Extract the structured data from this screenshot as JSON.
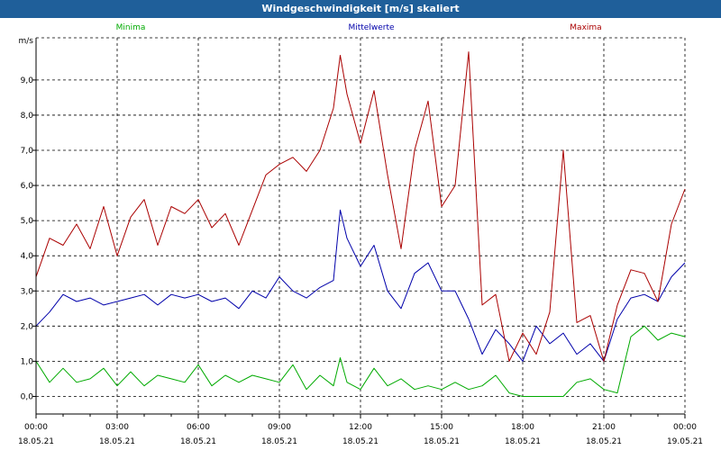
{
  "window": {
    "title": "Windgeschwindigkeit [m/s] skaliert"
  },
  "colors": {
    "minima": "#00aa00",
    "mittelwerte": "#0000aa",
    "maxima": "#aa0000",
    "titlebar": "#1f5f9a"
  },
  "chart_data": {
    "type": "line",
    "ylabel": "m/s",
    "ylim": [
      -0.5,
      10.2
    ],
    "xlim_hours": [
      0,
      24
    ],
    "yticks": [
      "0,0",
      "1,0",
      "2,0",
      "3,0",
      "4,0",
      "5,0",
      "6,0",
      "7,0",
      "8,0",
      "9,0"
    ],
    "ytick_values": [
      0,
      1,
      2,
      3,
      4,
      5,
      6,
      7,
      8,
      9
    ],
    "xticks": [
      {
        "time": "00:00",
        "date": "18.05.21"
      },
      {
        "time": "03:00",
        "date": "18.05.21"
      },
      {
        "time": "06:00",
        "date": "18.05.21"
      },
      {
        "time": "09:00",
        "date": "18.05.21"
      },
      {
        "time": "12:00",
        "date": "18.05.21"
      },
      {
        "time": "15:00",
        "date": "18.05.21"
      },
      {
        "time": "18:00",
        "date": "18.05.21"
      },
      {
        "time": "21:00",
        "date": "18.05.21"
      },
      {
        "time": "00:00",
        "date": "19.05.21"
      }
    ],
    "grid": true,
    "legend_placement": "top",
    "series": [
      {
        "name": "Minima",
        "color": "#00aa00",
        "x": [
          0,
          0.5,
          1,
          1.5,
          2,
          2.5,
          3,
          3.5,
          4,
          4.5,
          5,
          5.5,
          6,
          6.5,
          7,
          7.5,
          8,
          8.5,
          9,
          9.5,
          10,
          10.5,
          11,
          11.25,
          11.5,
          12,
          12.5,
          13,
          13.5,
          14,
          14.5,
          15,
          15.5,
          16,
          16.5,
          17,
          17.5,
          18,
          18.5,
          19,
          19.5,
          20,
          20.5,
          21,
          21.5,
          22,
          22.5,
          23,
          23.5,
          24
        ],
        "values": [
          1.0,
          0.4,
          0.8,
          0.4,
          0.5,
          0.8,
          0.3,
          0.7,
          0.3,
          0.6,
          0.5,
          0.4,
          0.9,
          0.3,
          0.6,
          0.4,
          0.6,
          0.5,
          0.4,
          0.9,
          0.2,
          0.6,
          0.3,
          1.1,
          0.4,
          0.2,
          0.8,
          0.3,
          0.5,
          0.2,
          0.3,
          0.2,
          0.4,
          0.2,
          0.3,
          0.6,
          0.1,
          0.0,
          0.0,
          0.0,
          0.0,
          0.4,
          0.5,
          0.2,
          0.1,
          1.7,
          2.0,
          1.6,
          1.8,
          1.7
        ]
      },
      {
        "name": "Mittelwerte",
        "color": "#0000aa",
        "x": [
          0,
          0.5,
          1,
          1.5,
          2,
          2.5,
          3,
          3.5,
          4,
          4.5,
          5,
          5.5,
          6,
          6.5,
          7,
          7.5,
          8,
          8.5,
          9,
          9.5,
          10,
          10.5,
          11,
          11.25,
          11.5,
          12,
          12.5,
          13,
          13.5,
          14,
          14.5,
          15,
          15.5,
          16,
          16.5,
          17,
          17.5,
          18,
          18.5,
          19,
          19.5,
          20,
          20.5,
          21,
          21.5,
          22,
          22.5,
          23,
          23.5,
          24
        ],
        "values": [
          2.0,
          2.4,
          2.9,
          2.7,
          2.8,
          2.6,
          2.7,
          2.8,
          2.9,
          2.6,
          2.9,
          2.8,
          2.9,
          2.7,
          2.8,
          2.5,
          3.0,
          2.8,
          3.4,
          3.0,
          2.8,
          3.1,
          3.3,
          5.3,
          4.5,
          3.7,
          4.3,
          3.0,
          2.5,
          3.5,
          3.8,
          3.0,
          3.0,
          2.2,
          1.2,
          1.9,
          1.5,
          1.0,
          2.0,
          1.5,
          1.8,
          1.2,
          1.5,
          1.0,
          2.2,
          2.8,
          2.9,
          2.7,
          3.4,
          3.8
        ]
      },
      {
        "name": "Maxima",
        "color": "#aa0000",
        "x": [
          0,
          0.5,
          1,
          1.5,
          2,
          2.5,
          3,
          3.5,
          4,
          4.5,
          5,
          5.5,
          6,
          6.5,
          7,
          7.5,
          8,
          8.5,
          9,
          9.5,
          10,
          10.5,
          11,
          11.25,
          11.5,
          12,
          12.5,
          13,
          13.5,
          14,
          14.5,
          15,
          15.5,
          16,
          16.5,
          17,
          17.5,
          18,
          18.5,
          19,
          19.5,
          20,
          20.5,
          21,
          21.5,
          22,
          22.5,
          23,
          23.5,
          24
        ],
        "values": [
          3.4,
          4.5,
          4.3,
          4.9,
          4.2,
          5.4,
          4.0,
          5.1,
          5.6,
          4.3,
          5.4,
          5.2,
          5.6,
          4.8,
          5.2,
          4.3,
          5.3,
          6.3,
          6.6,
          6.8,
          6.4,
          7.0,
          8.2,
          9.7,
          8.6,
          7.2,
          8.7,
          6.3,
          4.2,
          7.0,
          8.4,
          5.4,
          6.0,
          9.8,
          2.6,
          2.9,
          1.0,
          1.8,
          1.2,
          2.4,
          7.0,
          2.1,
          2.3,
          1.0,
          2.6,
          3.6,
          3.5,
          2.7,
          4.9,
          5.9
        ]
      }
    ]
  }
}
